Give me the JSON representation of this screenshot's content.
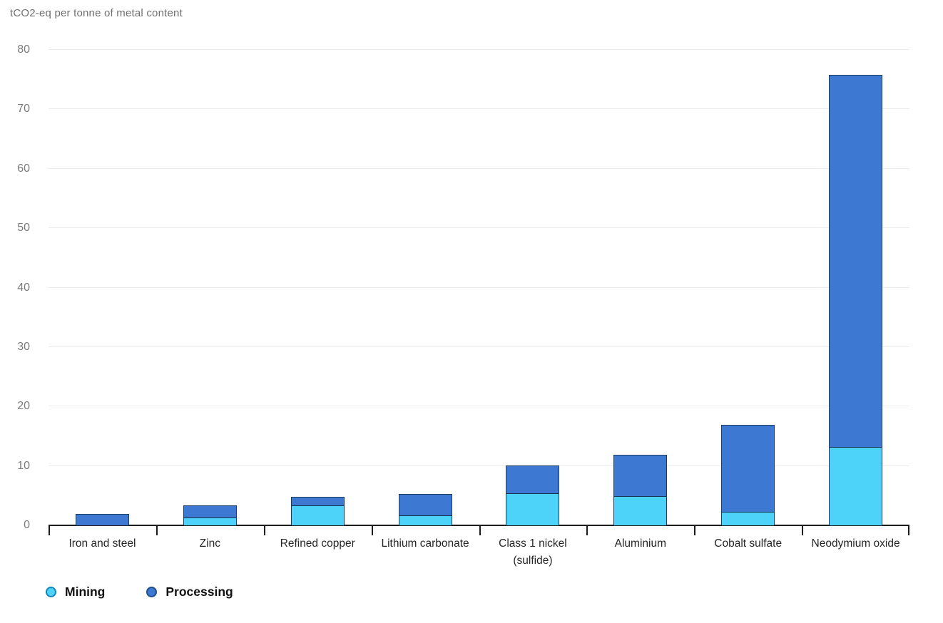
{
  "header": {
    "title": "tCO2-eq per tonne of metal content"
  },
  "colors": {
    "mining": "#4DD2FA",
    "processing": "#3D79D3",
    "bar_border": "#1d3d5e",
    "segment_divider": "#14324f",
    "gridline": "#ebebeb",
    "axis_line": "#1c1c1c",
    "title_text": "#6f6f6f",
    "ytick_text": "#7b7b7b",
    "xlabel_text": "#262626",
    "mining_marker_border": "#1586b8",
    "processing_marker_border": "#1e4e8c"
  },
  "chart_data": {
    "type": "bar",
    "stacked": true,
    "title": "tCO2-eq per tonne of metal content",
    "xlabel": "",
    "ylabel": "tCO2-eq per tonne of metal content",
    "categories": [
      "Iron and steel",
      "Zinc",
      "Refined copper",
      "Lithium carbonate",
      "Class 1 nickel (sulfide)",
      "Aluminium",
      "Cobalt sulfate",
      "Neodymium oxide"
    ],
    "series": [
      {
        "name": "Mining",
        "color": "#4DD2FA",
        "values": [
          0,
          1.2,
          3.3,
          1.6,
          5.4,
          4.9,
          2.2,
          13.1
        ]
      },
      {
        "name": "Processing",
        "color": "#3D79D3",
        "values": [
          1.8,
          2.0,
          1.4,
          3.5,
          4.6,
          6.9,
          14.6,
          62.6
        ]
      }
    ],
    "totals": [
      1.8,
      3.2,
      4.7,
      5.1,
      10.0,
      11.8,
      16.8,
      75.7
    ],
    "ylim": [
      0,
      80
    ],
    "yticks": [
      0,
      10,
      20,
      30,
      40,
      50,
      60,
      70,
      80
    ],
    "grid": true,
    "legend_position": "bottom-left",
    "legend": [
      "Mining",
      "Processing"
    ]
  }
}
